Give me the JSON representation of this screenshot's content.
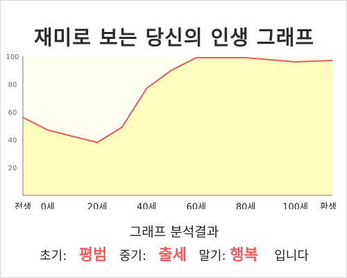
{
  "title": "재미로 보는 당신의 인생 그래프",
  "summary": {
    "heading": "그래프 분석결과",
    "early_label": "초기:",
    "early_value": "평범",
    "mid_label": "중기:",
    "mid_value": "출세",
    "late_label": "말기:",
    "late_value": "행복",
    "suffix": "입니다"
  },
  "colors": {
    "line": "#e8585f",
    "area_fill": "#fffcbf",
    "plot_bg": "#fffff0",
    "highlight": "#ee5a5a"
  },
  "chart_data": {
    "type": "area",
    "title": "재미로 보는 당신의 인생 그래프",
    "xlabel": "",
    "ylabel": "",
    "ylim": [
      0,
      100
    ],
    "xlim": [
      -10,
      115
    ],
    "x_ticks": [
      {
        "x": -10,
        "label": "전생"
      },
      {
        "x": 0,
        "label": "0세"
      },
      {
        "x": 20,
        "label": "20세"
      },
      {
        "x": 40,
        "label": "40세"
      },
      {
        "x": 60,
        "label": "60세"
      },
      {
        "x": 80,
        "label": "80세"
      },
      {
        "x": 100,
        "label": "100세"
      },
      {
        "x": 115,
        "label": "환생"
      }
    ],
    "y_ticks": [
      20,
      40,
      60,
      80,
      100
    ],
    "grid": false,
    "series": [
      {
        "x": [
          -10,
          0,
          20,
          30,
          40,
          50,
          60,
          80,
          100,
          115
        ],
        "values": [
          56,
          47,
          38,
          49,
          77,
          90,
          99,
          99,
          96,
          97
        ]
      }
    ]
  }
}
